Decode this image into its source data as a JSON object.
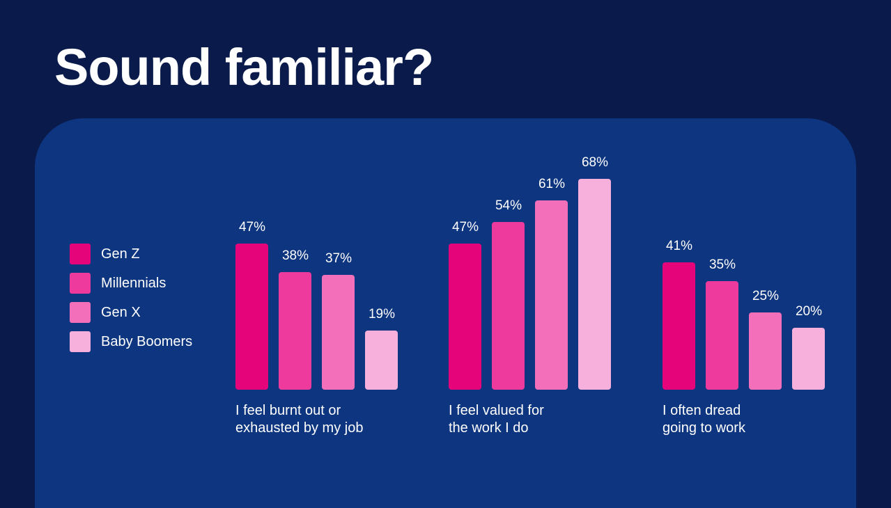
{
  "title": "Sound familiar?",
  "colors": {
    "background": "#0a1a4b",
    "panel": "#0e3680"
  },
  "chart_data": {
    "type": "bar",
    "title": "Sound familiar?",
    "xlabel": "",
    "ylabel": "",
    "ylim": [
      0,
      70
    ],
    "legend": "left",
    "categories": [
      "I feel burnt out or\nexhausted by my job",
      "I feel valued for\nthe work I do",
      "I often dread\ngoing to work"
    ],
    "series": [
      {
        "name": "Gen Z",
        "color": "#e6047a",
        "values": [
          47,
          47,
          41
        ],
        "labels": [
          "47%",
          "47%",
          "41%"
        ]
      },
      {
        "name": "Millennials",
        "color": "#ee3a9c",
        "values": [
          38,
          54,
          35
        ],
        "labels": [
          "38%",
          "54%",
          "35%"
        ]
      },
      {
        "name": "Gen X",
        "color": "#f46fba",
        "values": [
          37,
          61,
          25
        ],
        "labels": [
          "37%",
          "61%",
          "25%"
        ]
      },
      {
        "name": "Baby Boomers",
        "color": "#f7b0db",
        "values": [
          19,
          68,
          20
        ],
        "labels": [
          "19%",
          "68%",
          "20%"
        ]
      }
    ]
  }
}
